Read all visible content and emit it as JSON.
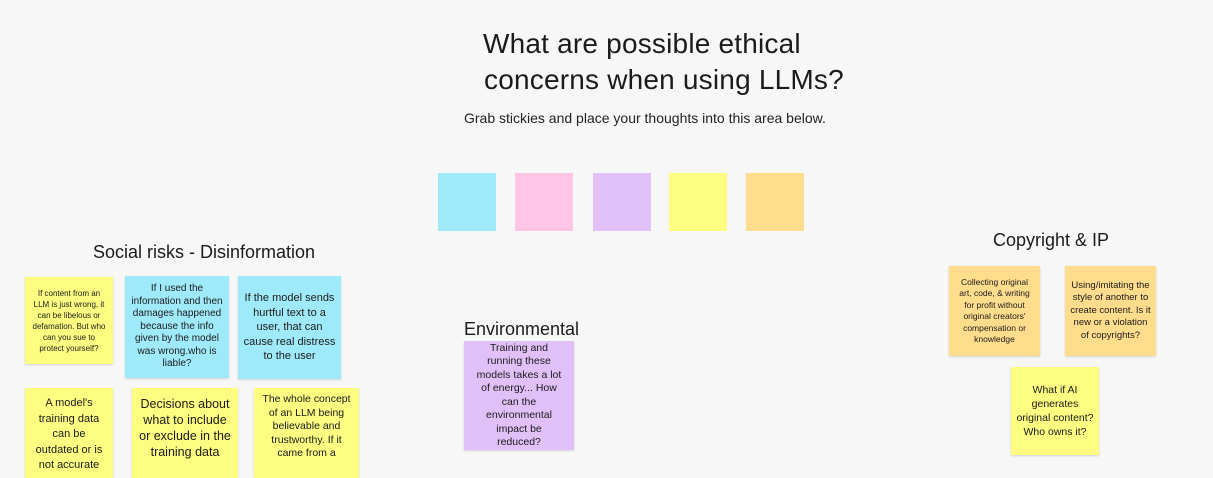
{
  "header": {
    "title_line1": "What are possible ethical",
    "title_line2": "concerns when using LLMs?",
    "subtitle": "Grab stickies and place your thoughts into this area below."
  },
  "palette": {
    "cyan": "#9feafa",
    "pink": "#ffc4e6",
    "purple": "#e0c0f7",
    "yellow": "#fdfd82",
    "orange": "#ffdd8c"
  },
  "sections": {
    "social": {
      "heading": "Social risks - Disinformation",
      "stickies": [
        "If content from an LLM is just wrong, it can be libelous or defamation. But who can you sue to protect yourself?",
        "If I used the information and then damages happened because the info given by the model was wrong.who is liable?",
        "If the model sends hurtful text to a user, that can cause real distress to the user",
        "A model's training data can be outdated or is not accurate",
        "Decisions about what to include or exclude in the training data",
        "The whole concept of an LLM being believable and trustworthy. If it came from a"
      ]
    },
    "environmental": {
      "heading": "Environmental",
      "stickies": [
        "Training and running these models takes a lot of energy... How can the environmental impact be reduced?"
      ]
    },
    "copyright": {
      "heading": "Copyright & IP",
      "stickies": [
        "Collecting original art, code, & writing for profit without original creators' compensation or knowledge",
        "Using/imitating the style of another to create content. Is it new or a violation of copyrights?",
        "What if AI generates original content? Who owns it?"
      ]
    }
  }
}
